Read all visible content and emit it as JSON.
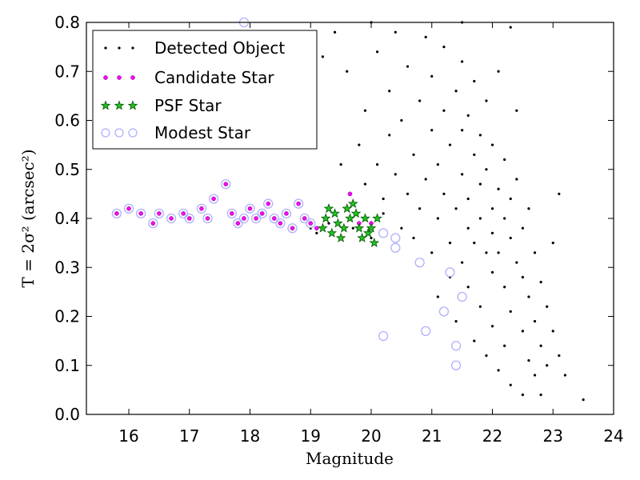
{
  "chart_data": {
    "type": "scatter",
    "xlabel": "Magnitude",
    "ylabel": "T = 2σ² (arcsec²)",
    "xlim": [
      15.3,
      24
    ],
    "ylim": [
      0,
      0.8
    ],
    "xticks": [
      16,
      17,
      18,
      19,
      20,
      21,
      22,
      23,
      24
    ],
    "yticks": [
      0.0,
      0.1,
      0.2,
      0.3,
      0.4,
      0.5,
      0.6,
      0.7,
      0.8
    ],
    "legend_position": "top-left",
    "grid": false,
    "series": [
      {
        "name": "Detected Object",
        "marker": "dot",
        "color": "#000000",
        "points": [
          [
            19.0,
            0.38
          ],
          [
            19.1,
            0.37
          ],
          [
            19.3,
            0.39
          ],
          [
            19.5,
            0.36
          ],
          [
            19.7,
            0.38
          ],
          [
            19.8,
            0.55
          ],
          [
            19.9,
            0.62
          ],
          [
            20.0,
            0.36
          ],
          [
            20.1,
            0.51
          ],
          [
            20.1,
            0.74
          ],
          [
            20.2,
            0.41
          ],
          [
            20.3,
            0.57
          ],
          [
            20.3,
            0.66
          ],
          [
            20.4,
            0.49
          ],
          [
            20.4,
            0.78
          ],
          [
            20.5,
            0.38
          ],
          [
            20.5,
            0.6
          ],
          [
            20.6,
            0.45
          ],
          [
            20.6,
            0.71
          ],
          [
            20.7,
            0.36
          ],
          [
            20.7,
            0.53
          ],
          [
            20.8,
            0.64
          ],
          [
            20.8,
            0.42
          ],
          [
            20.9,
            0.77
          ],
          [
            20.9,
            0.48
          ],
          [
            21.0,
            0.33
          ],
          [
            21.0,
            0.58
          ],
          [
            21.0,
            0.69
          ],
          [
            21.1,
            0.4
          ],
          [
            21.1,
            0.51
          ],
          [
            21.1,
            0.24
          ],
          [
            21.2,
            0.62
          ],
          [
            21.2,
            0.45
          ],
          [
            21.2,
            0.75
          ],
          [
            21.3,
            0.35
          ],
          [
            21.3,
            0.55
          ],
          [
            21.3,
            0.28
          ],
          [
            21.4,
            0.42
          ],
          [
            21.4,
            0.66
          ],
          [
            21.4,
            0.19
          ],
          [
            21.5,
            0.49
          ],
          [
            21.5,
            0.58
          ],
          [
            21.5,
            0.31
          ],
          [
            21.5,
            0.72
          ],
          [
            21.6,
            0.38
          ],
          [
            21.6,
            0.44
          ],
          [
            21.6,
            0.26
          ],
          [
            21.6,
            0.61
          ],
          [
            21.7,
            0.53
          ],
          [
            21.7,
            0.35
          ],
          [
            21.7,
            0.15
          ],
          [
            21.7,
            0.68
          ],
          [
            21.8,
            0.47
          ],
          [
            21.8,
            0.4
          ],
          [
            21.8,
            0.22
          ],
          [
            21.8,
            0.57
          ],
          [
            21.9,
            0.33
          ],
          [
            21.9,
            0.5
          ],
          [
            21.9,
            0.64
          ],
          [
            21.9,
            0.12
          ],
          [
            22.0,
            0.42
          ],
          [
            22.0,
            0.37
          ],
          [
            22.0,
            0.29
          ],
          [
            22.0,
            0.55
          ],
          [
            22.0,
            0.18
          ],
          [
            22.1,
            0.46
          ],
          [
            22.1,
            0.33
          ],
          [
            22.1,
            0.7
          ],
          [
            22.1,
            0.09
          ],
          [
            22.2,
            0.4
          ],
          [
            22.2,
            0.26
          ],
          [
            22.2,
            0.52
          ],
          [
            22.2,
            0.14
          ],
          [
            22.3,
            0.36
          ],
          [
            22.3,
            0.44
          ],
          [
            22.3,
            0.21
          ],
          [
            22.3,
            0.06
          ],
          [
            22.4,
            0.31
          ],
          [
            22.4,
            0.48
          ],
          [
            22.4,
            0.62
          ],
          [
            22.5,
            0.28
          ],
          [
            22.5,
            0.38
          ],
          [
            22.5,
            0.17
          ],
          [
            22.5,
            0.04
          ],
          [
            22.6,
            0.24
          ],
          [
            22.6,
            0.42
          ],
          [
            22.6,
            0.11
          ],
          [
            22.7,
            0.33
          ],
          [
            22.7,
            0.19
          ],
          [
            22.7,
            0.08
          ],
          [
            22.8,
            0.27
          ],
          [
            22.8,
            0.14
          ],
          [
            22.8,
            0.04
          ],
          [
            22.9,
            0.22
          ],
          [
            22.9,
            0.1
          ],
          [
            23.0,
            0.35
          ],
          [
            23.0,
            0.17
          ],
          [
            23.1,
            0.45
          ],
          [
            23.1,
            0.12
          ],
          [
            23.2,
            0.08
          ],
          [
            23.5,
            0.03
          ],
          [
            20.0,
            0.8
          ],
          [
            21.5,
            0.8
          ],
          [
            22.3,
            0.79
          ],
          [
            19.4,
            0.78
          ],
          [
            19.2,
            0.73
          ],
          [
            19.6,
            0.7
          ],
          [
            19.9,
            0.47
          ],
          [
            19.5,
            0.51
          ],
          [
            20.2,
            0.44
          ]
        ]
      },
      {
        "name": "Candidate Star",
        "marker": "small-circle",
        "color": "#ff00ff",
        "points": [
          [
            15.8,
            0.41
          ],
          [
            16.0,
            0.42
          ],
          [
            16.2,
            0.41
          ],
          [
            16.4,
            0.39
          ],
          [
            16.5,
            0.41
          ],
          [
            16.7,
            0.4
          ],
          [
            16.9,
            0.41
          ],
          [
            17.0,
            0.4
          ],
          [
            17.2,
            0.42
          ],
          [
            17.3,
            0.4
          ],
          [
            17.4,
            0.44
          ],
          [
            17.6,
            0.47
          ],
          [
            17.7,
            0.41
          ],
          [
            17.8,
            0.39
          ],
          [
            17.9,
            0.4
          ],
          [
            18.0,
            0.42
          ],
          [
            18.1,
            0.4
          ],
          [
            18.2,
            0.41
          ],
          [
            18.3,
            0.43
          ],
          [
            18.4,
            0.4
          ],
          [
            18.5,
            0.39
          ],
          [
            18.6,
            0.41
          ],
          [
            18.7,
            0.38
          ],
          [
            18.8,
            0.43
          ],
          [
            18.9,
            0.4
          ],
          [
            19.0,
            0.39
          ],
          [
            19.1,
            0.38
          ],
          [
            19.65,
            0.45
          ],
          [
            19.8,
            0.39
          ],
          [
            20.0,
            0.39
          ]
        ]
      },
      {
        "name": "PSF Star",
        "marker": "star",
        "color": "#00aa00",
        "points": [
          [
            19.2,
            0.38
          ],
          [
            19.25,
            0.4
          ],
          [
            19.3,
            0.42
          ],
          [
            19.35,
            0.37
          ],
          [
            19.4,
            0.41
          ],
          [
            19.45,
            0.39
          ],
          [
            19.5,
            0.36
          ],
          [
            19.55,
            0.38
          ],
          [
            19.6,
            0.42
          ],
          [
            19.65,
            0.4
          ],
          [
            19.7,
            0.43
          ],
          [
            19.75,
            0.41
          ],
          [
            19.8,
            0.38
          ],
          [
            19.85,
            0.36
          ],
          [
            19.9,
            0.4
          ],
          [
            19.95,
            0.37
          ],
          [
            20.0,
            0.38
          ],
          [
            20.05,
            0.35
          ],
          [
            20.1,
            0.4
          ]
        ]
      },
      {
        "name": "Modest Star",
        "marker": "open-circle",
        "color": "#b0b0ff",
        "points": [
          [
            15.8,
            0.41
          ],
          [
            16.0,
            0.42
          ],
          [
            16.2,
            0.41
          ],
          [
            16.4,
            0.39
          ],
          [
            16.5,
            0.41
          ],
          [
            16.7,
            0.4
          ],
          [
            16.9,
            0.41
          ],
          [
            17.0,
            0.4
          ],
          [
            17.2,
            0.42
          ],
          [
            17.3,
            0.4
          ],
          [
            17.4,
            0.44
          ],
          [
            17.6,
            0.47
          ],
          [
            17.7,
            0.41
          ],
          [
            17.8,
            0.39
          ],
          [
            17.9,
            0.4
          ],
          [
            18.0,
            0.42
          ],
          [
            18.1,
            0.4
          ],
          [
            18.2,
            0.41
          ],
          [
            18.3,
            0.43
          ],
          [
            18.4,
            0.4
          ],
          [
            18.5,
            0.39
          ],
          [
            18.6,
            0.41
          ],
          [
            18.7,
            0.38
          ],
          [
            18.8,
            0.43
          ],
          [
            18.9,
            0.4
          ],
          [
            19.0,
            0.39
          ],
          [
            20.2,
            0.37
          ],
          [
            20.4,
            0.36
          ],
          [
            20.4,
            0.34
          ],
          [
            20.8,
            0.31
          ],
          [
            21.3,
            0.29
          ],
          [
            21.2,
            0.21
          ],
          [
            21.5,
            0.24
          ],
          [
            20.2,
            0.16
          ],
          [
            20.9,
            0.17
          ],
          [
            21.4,
            0.14
          ],
          [
            21.4,
            0.1
          ],
          [
            17.9,
            0.8
          ]
        ]
      }
    ]
  }
}
